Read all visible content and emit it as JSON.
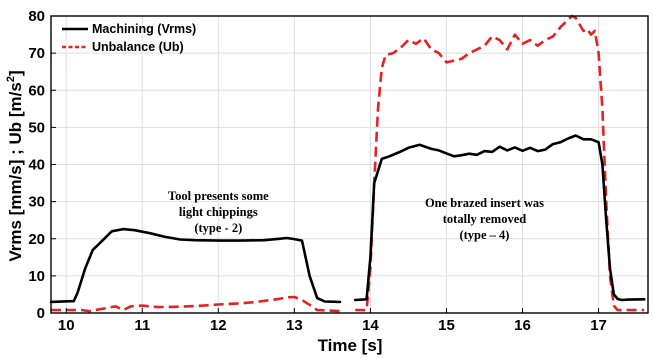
{
  "chart_data": {
    "type": "line",
    "title": "",
    "xlabel": "Time  [s]",
    "ylabel_parts": {
      "main": "Vrms  [mm/s] ;  Ub [m/s",
      "sup": "2",
      "end": "]"
    },
    "xlim": [
      9.8,
      17.65
    ],
    "ylim": [
      0,
      80
    ],
    "x_ticks": [
      10,
      11,
      12,
      13,
      14,
      15,
      16,
      17
    ],
    "y_ticks": [
      0,
      10,
      20,
      30,
      40,
      50,
      60,
      70,
      80
    ],
    "grid": true,
    "legend_position": "top-left",
    "series": [
      {
        "name": "Machining (Vrms)",
        "color": "#000000",
        "style": "solid",
        "segments": [
          {
            "x": [
              9.8,
              10.1,
              10.15,
              10.25,
              10.35,
              10.5,
              10.6,
              10.75,
              10.9,
              11.1,
              11.3,
              11.5,
              11.7,
              12.0,
              12.3,
              12.6,
              12.8,
              12.9,
              13.0,
              13.1,
              13.2,
              13.3,
              13.4,
              13.6
            ],
            "y": [
              3.0,
              3.2,
              5.5,
              12.0,
              17.0,
              20.0,
              22.0,
              22.6,
              22.3,
              21.5,
              20.5,
              19.8,
              19.6,
              19.5,
              19.5,
              19.6,
              20.0,
              20.2,
              19.9,
              19.5,
              10.0,
              4.0,
              3.1,
              3.0
            ]
          },
          {
            "x": [
              13.8,
              13.95,
              14.0,
              14.05,
              14.15,
              14.25,
              14.4,
              14.5,
              14.65,
              14.8,
              14.9,
              15.0,
              15.1,
              15.2,
              15.3,
              15.4,
              15.5,
              15.6,
              15.7,
              15.8,
              15.9,
              16.0,
              16.1,
              16.2,
              16.3,
              16.4,
              16.5,
              16.6,
              16.7,
              16.8,
              16.9,
              17.0,
              17.05,
              17.1,
              17.15,
              17.2,
              17.25,
              17.3,
              17.4,
              17.6
            ],
            "y": [
              3.5,
              3.7,
              15.0,
              35.0,
              41.5,
              42.2,
              43.5,
              44.5,
              45.3,
              44.2,
              43.8,
              43.0,
              42.2,
              42.5,
              42.9,
              42.6,
              43.6,
              43.4,
              44.8,
              43.8,
              44.6,
              43.7,
              44.5,
              43.6,
              44.0,
              45.5,
              46.0,
              47.0,
              47.8,
              46.8,
              46.8,
              46.0,
              40.0,
              25.0,
              12.0,
              5.0,
              3.8,
              3.5,
              3.6,
              3.7
            ]
          }
        ]
      },
      {
        "name": "Unbalance (Ub)",
        "color": "#e52222",
        "style": "dashed",
        "segments": [
          {
            "x": [
              9.8,
              10.2,
              10.3,
              10.5,
              10.65,
              10.75,
              10.85,
              11.0,
              11.2,
              11.5,
              11.8,
              12.0,
              12.3,
              12.5,
              12.8,
              12.9,
              13.0,
              13.1,
              13.2,
              13.3,
              13.6
            ],
            "y": [
              0.8,
              0.8,
              0.5,
              1.2,
              1.8,
              0.8,
              1.8,
              2.0,
              1.6,
              1.7,
              2.0,
              2.3,
              2.6,
              3.0,
              3.8,
              4.2,
              4.3,
              3.5,
              2.2,
              0.8,
              0.5
            ]
          },
          {
            "x": [
              13.8,
              13.95,
              14.0,
              14.05,
              14.1,
              14.15,
              14.2,
              14.3,
              14.4,
              14.5,
              14.6,
              14.7,
              14.8,
              14.9,
              15.0,
              15.1,
              15.2,
              15.3,
              15.4,
              15.5,
              15.6,
              15.7,
              15.8,
              15.9,
              16.0,
              16.1,
              16.2,
              16.3,
              16.4,
              16.5,
              16.6,
              16.65,
              16.7,
              16.8,
              16.85,
              16.9,
              16.95,
              17.0,
              17.05,
              17.1,
              17.15,
              17.2,
              17.25,
              17.3,
              17.6
            ],
            "y": [
              0.8,
              0.8,
              12.0,
              35.0,
              55.0,
              66.0,
              69.5,
              70.0,
              71.5,
              73.5,
              72.5,
              74.0,
              71.0,
              70.0,
              67.5,
              68.0,
              68.5,
              70.0,
              71.0,
              72.0,
              74.5,
              73.5,
              71.0,
              75.0,
              72.5,
              73.5,
              72.0,
              73.5,
              74.5,
              77.0,
              79.0,
              80.0,
              79.5,
              76.0,
              76.5,
              75.0,
              76.0,
              70.0,
              55.0,
              30.0,
              10.0,
              2.0,
              0.8,
              0.8,
              0.8
            ]
          }
        ]
      }
    ],
    "annotations": [
      {
        "lines": [
          "Tool presents some",
          "light chippings",
          "(type - 2)"
        ],
        "x": 12.0,
        "y": 30.5
      },
      {
        "lines": [
          "One brazed insert was",
          "totally removed",
          "(type – 4)"
        ],
        "x": 15.5,
        "y": 28.5
      }
    ]
  }
}
